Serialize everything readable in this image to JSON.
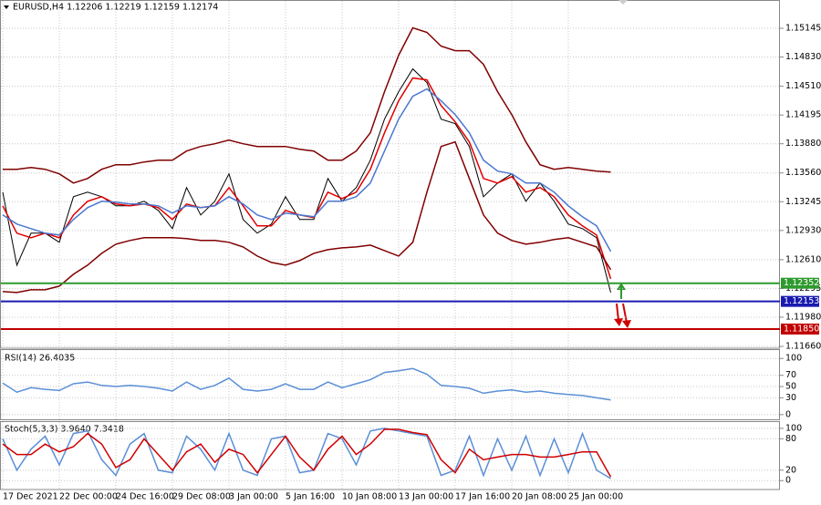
{
  "chart_data": [
    {
      "type": "line",
      "title": "EURUSD,H4  1.12206 1.12219 1.12159 1.12174",
      "categories": [
        "17 Dec 2021",
        null,
        null,
        null,
        "22 Dec 00:00",
        null,
        null,
        null,
        "24 Dec 16:00",
        null,
        null,
        null,
        "29 Dec 08:00",
        null,
        null,
        null,
        "3 Jan 00:00",
        null,
        null,
        null,
        "5 Jan 16:00",
        null,
        null,
        null,
        "10 Jan 08:00",
        null,
        null,
        null,
        "13 Jan 00:00",
        null,
        null,
        null,
        "17 Jan 16:00",
        null,
        null,
        null,
        "20 Jan 08:00",
        null,
        null,
        null,
        "25 Jan 00:00",
        null,
        null,
        null
      ],
      "series": [
        {
          "color": "#000000",
          "values": [
            1.1335,
            1.1255,
            1.129,
            1.129,
            1.128,
            1.133,
            1.1335,
            1.133,
            1.132,
            1.132,
            1.1325,
            1.1315,
            1.1295,
            1.134,
            1.131,
            1.1325,
            1.1355,
            1.1305,
            1.129,
            1.13,
            1.133,
            1.1305,
            1.1305,
            1.135,
            1.1325,
            1.134,
            1.137,
            1.1415,
            1.1445,
            1.147,
            1.1455,
            1.1415,
            1.141,
            1.1385,
            1.133,
            1.1345,
            1.1355,
            1.1325,
            1.1345,
            1.1325,
            1.13,
            1.1295,
            1.1285,
            1.1225
          ]
        },
        {
          "color": "#e00000",
          "values": [
            1.132,
            1.129,
            1.1285,
            1.129,
            1.1285,
            1.131,
            1.1325,
            1.133,
            1.1322,
            1.132,
            1.1322,
            1.1318,
            1.1305,
            1.1322,
            1.1318,
            1.132,
            1.134,
            1.132,
            1.1298,
            1.1298,
            1.1315,
            1.131,
            1.1307,
            1.1335,
            1.1328,
            1.1335,
            1.136,
            1.14,
            1.1435,
            1.146,
            1.1458,
            1.143,
            1.1412,
            1.139,
            1.135,
            1.1345,
            1.1352,
            1.1335,
            1.134,
            1.133,
            1.131,
            1.1298,
            1.1288,
            1.124
          ]
        },
        {
          "color": "#4a78d0",
          "values": [
            1.131,
            1.13,
            1.1295,
            1.129,
            1.1288,
            1.1305,
            1.1318,
            1.1325,
            1.1324,
            1.1322,
            1.1322,
            1.132,
            1.1312,
            1.132,
            1.1318,
            1.132,
            1.133,
            1.1322,
            1.131,
            1.1305,
            1.1312,
            1.131,
            1.1308,
            1.1325,
            1.1325,
            1.133,
            1.1345,
            1.138,
            1.1415,
            1.144,
            1.1448,
            1.1435,
            1.142,
            1.14,
            1.137,
            1.1358,
            1.1355,
            1.1345,
            1.1345,
            1.1335,
            1.132,
            1.1308,
            1.1298,
            1.127
          ]
        },
        {
          "color": "#800000",
          "values": [
            1.136,
            1.136,
            1.1362,
            1.136,
            1.1355,
            1.1345,
            1.135,
            1.136,
            1.1365,
            1.1365,
            1.1368,
            1.137,
            1.137,
            1.138,
            1.1385,
            1.1388,
            1.1392,
            1.1388,
            1.1385,
            1.1385,
            1.1385,
            1.1382,
            1.138,
            1.137,
            1.137,
            1.138,
            1.14,
            1.1445,
            1.1485,
            1.1515,
            1.151,
            1.1495,
            1.149,
            1.149,
            1.1475,
            1.1445,
            1.142,
            1.139,
            1.1365,
            1.136,
            1.1362,
            1.136,
            1.1358,
            1.1357
          ]
        },
        {
          "color": "#800000",
          "values": [
            1.1226,
            1.1225,
            1.1228,
            1.1228,
            1.1232,
            1.1245,
            1.1255,
            1.1268,
            1.1278,
            1.1282,
            1.1285,
            1.1285,
            1.1285,
            1.1284,
            1.1282,
            1.1282,
            1.128,
            1.1275,
            1.1265,
            1.1258,
            1.1255,
            1.126,
            1.1268,
            1.1272,
            1.1274,
            1.1275,
            1.1277,
            1.1271,
            1.1265,
            1.128,
            1.1335,
            1.1385,
            1.139,
            1.135,
            1.131,
            1.129,
            1.1282,
            1.1278,
            1.128,
            1.1283,
            1.1285,
            1.128,
            1.1275,
            1.125
          ]
        }
      ],
      "levels": [
        {
          "value": 1.12352,
          "color": "#2e9a2e"
        },
        {
          "value": 1.12153,
          "color": "#1a1ab0"
        },
        {
          "value": 1.1185,
          "label": "1.11850",
          "color": "#c00000"
        }
      ],
      "ylim": [
        1.1164,
        1.15445
      ],
      "yticks": [
        1.15145,
        {
          "value": 1.1483,
          "label": "1.14830"
        },
        {
          "value": 1.1451,
          "label": "1.14510"
        },
        1.14195,
        {
          "value": 1.1388,
          "label": "1.13880"
        },
        {
          "value": 1.1356,
          "label": "1.13560"
        },
        1.13245,
        {
          "value": 1.1293,
          "label": "1.12930"
        },
        {
          "value": 1.1261,
          "label": "1.12610"
        },
        1.12295,
        {
          "value": 1.1198,
          "label": "1.11980"
        },
        {
          "value": 1.1166,
          "label": "1.11660"
        }
      ],
      "grid": true
    },
    {
      "type": "line",
      "title": "RSI(14) 26.4035",
      "series": [
        {
          "color": "#5b8fd6",
          "values": [
            56,
            40,
            48,
            45,
            43,
            55,
            58,
            52,
            50,
            52,
            50,
            47,
            42,
            58,
            45,
            52,
            65,
            45,
            42,
            45,
            55,
            45,
            45,
            58,
            48,
            55,
            62,
            75,
            78,
            82,
            72,
            52,
            50,
            47,
            38,
            42,
            44,
            40,
            42,
            38,
            36,
            34,
            30,
            26
          ]
        }
      ],
      "ylim": [
        -10,
        115
      ],
      "yticks": [
        100,
        70,
        50,
        30,
        0
      ],
      "grid": true
    },
    {
      "type": "line",
      "title": "Stoch(5,3,3) 3.9640 7.3418",
      "series": [
        {
          "color": "#5b8fd6",
          "values": [
            80,
            20,
            60,
            85,
            30,
            90,
            95,
            40,
            10,
            70,
            90,
            20,
            15,
            85,
            60,
            20,
            90,
            20,
            10,
            80,
            85,
            15,
            20,
            90,
            80,
            30,
            95,
            100,
            95,
            90,
            85,
            10,
            20,
            85,
            10,
            80,
            20,
            85,
            10,
            80,
            15,
            90,
            20,
            4
          ]
        },
        {
          "color": "#d00000",
          "values": [
            70,
            50,
            50,
            70,
            55,
            65,
            90,
            70,
            25,
            40,
            80,
            50,
            20,
            55,
            70,
            35,
            60,
            50,
            15,
            50,
            85,
            45,
            20,
            60,
            85,
            50,
            70,
            98,
            98,
            92,
            88,
            40,
            15,
            60,
            40,
            45,
            50,
            50,
            45,
            45,
            50,
            55,
            55,
            7
          ]
        }
      ],
      "ylim": [
        -17,
        112
      ],
      "yticks": [
        100,
        80,
        20,
        0
      ],
      "grid": true
    }
  ]
}
